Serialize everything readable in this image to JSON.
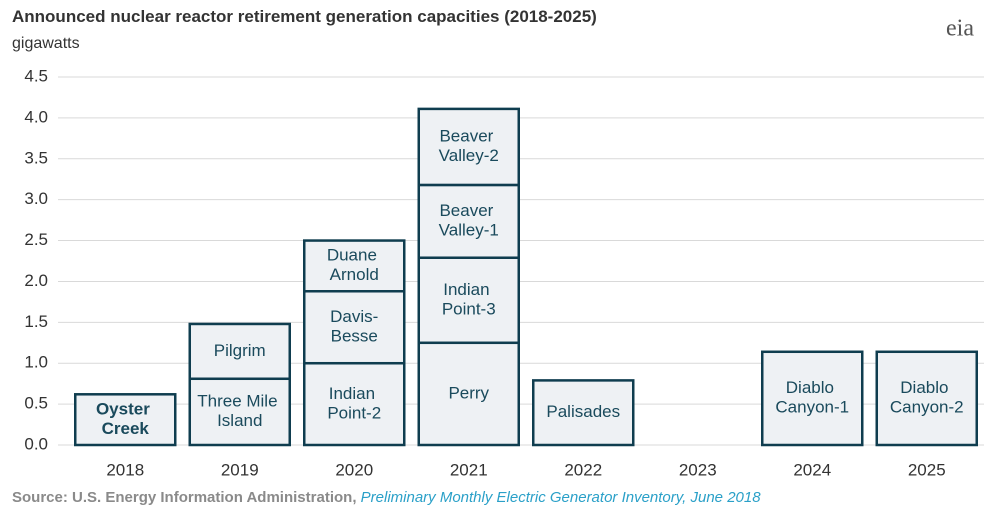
{
  "chart_data": {
    "type": "stacked-bar",
    "title": "Announced nuclear reactor retirement generation capacities (2018-2025)",
    "subtitle": "gigawatts",
    "logo": "eia",
    "source": "Source: U.S. Energy Information Administration, ",
    "source_italic": "Preliminary Monthly Electric Generator Inventory, June 2018",
    "categories": [
      "2018",
      "2019",
      "2020",
      "2021",
      "2022",
      "2023",
      "2024",
      "2025"
    ],
    "series": [
      {
        "labels": [
          "Oyster Creek",
          "Three Mile Island",
          "Indian Point-2",
          "Perry",
          "Palisades",
          null,
          "Diablo Canyon-1",
          "Diablo Canyon-2"
        ],
        "values": [
          0.62,
          0.81,
          1.0,
          1.25,
          0.79,
          null,
          1.14,
          1.14
        ]
      },
      {
        "labels": [
          null,
          "Pilgrim",
          "Davis-Besse",
          "Indian Point-3",
          null,
          null,
          null,
          null
        ],
        "values": [
          null,
          0.67,
          0.88,
          1.04,
          null,
          null,
          null,
          null
        ]
      },
      {
        "labels": [
          null,
          null,
          "Duane Arnold",
          "Beaver Valley-1",
          null,
          null,
          null,
          null
        ],
        "values": [
          null,
          null,
          0.62,
          0.89,
          null,
          null,
          null,
          null
        ]
      },
      {
        "labels": [
          null,
          null,
          null,
          "Beaver Valley-2",
          null,
          null,
          null,
          null
        ],
        "values": [
          null,
          null,
          null,
          0.93,
          null,
          null,
          null,
          null
        ]
      }
    ],
    "color": "#eef1f4",
    "edge_color": "#0f3d4f",
    "ylim": [
      0,
      4.5
    ],
    "yticks": [
      {
        "value": 0,
        "label": "0.0"
      },
      0.5,
      {
        "value": 1,
        "label": "1.0"
      },
      1.5,
      {
        "value": 2,
        "label": "2.0"
      },
      2.5,
      {
        "value": 3,
        "label": "3.0"
      },
      3.5,
      {
        "value": 4,
        "label": "4.0"
      },
      4.5
    ],
    "grid": true
  }
}
